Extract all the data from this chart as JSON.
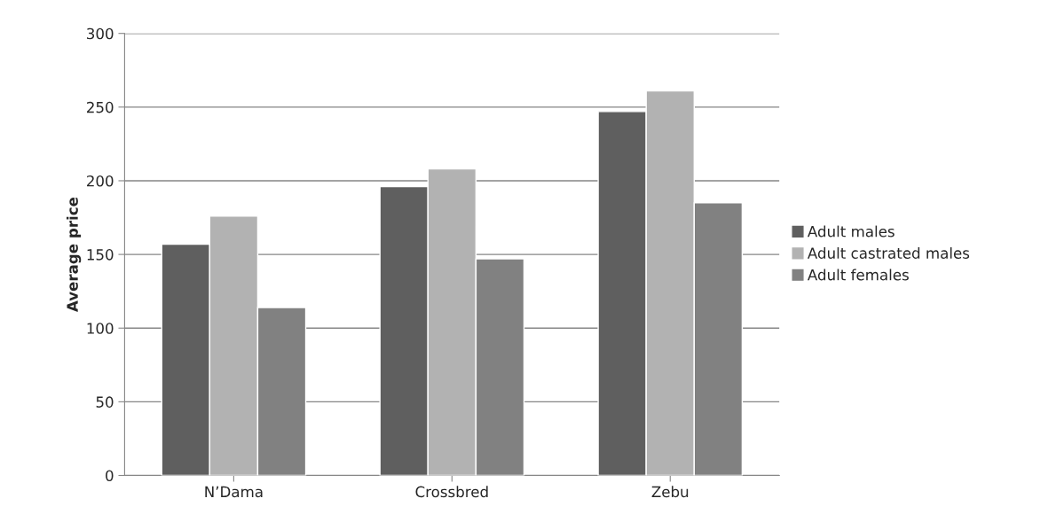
{
  "chart_data": {
    "type": "bar",
    "ylabel": "Average price",
    "categories": [
      "N’Dama",
      "Crossbred",
      "Zebu"
    ],
    "series": [
      {
        "name": "Adult males",
        "color": "#5f5f5f",
        "values": [
          157,
          196,
          247
        ]
      },
      {
        "name": "Adult castrated males",
        "color": "#b2b2b2",
        "values": [
          176,
          208,
          261
        ]
      },
      {
        "name": "Adult females",
        "color": "#818181",
        "values": [
          114,
          147,
          185
        ]
      }
    ],
    "ylim": [
      0,
      300
    ],
    "yticks": [
      0,
      50,
      100,
      150,
      200,
      250,
      300
    ],
    "grid": "y",
    "legend": "right"
  }
}
